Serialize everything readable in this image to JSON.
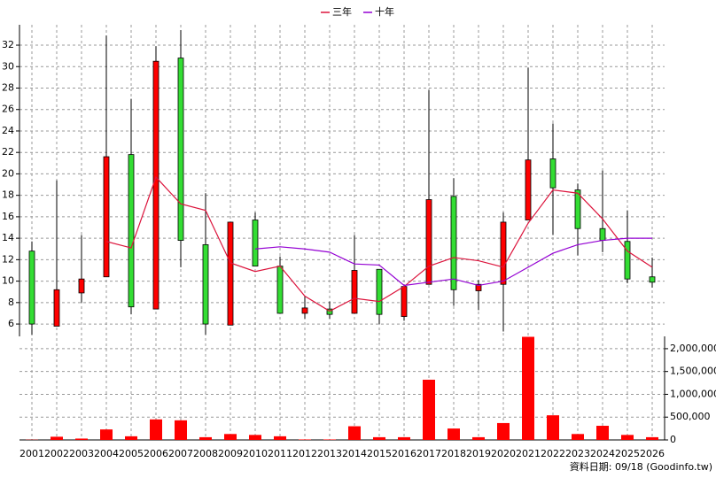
{
  "chart_data": {
    "type": "candlestick",
    "categories": [
      "2001",
      "2002",
      "2003",
      "2004",
      "2005",
      "2006",
      "2007",
      "2008",
      "2009",
      "2010",
      "2011",
      "2012",
      "2013",
      "2014",
      "2015",
      "2016",
      "2017",
      "2018",
      "2019",
      "2020",
      "2021",
      "2022",
      "2023",
      "2024",
      "2025",
      "2026"
    ],
    "open": [
      12.8,
      5.8,
      8.9,
      10.4,
      21.8,
      7.4,
      30.8,
      13.4,
      5.9,
      15.7,
      11.4,
      7.0,
      7.4,
      7.0,
      11.1,
      6.7,
      9.7,
      17.9,
      9.1,
      9.7,
      15.7,
      21.4,
      18.5,
      14.9,
      13.7,
      10.4
    ],
    "high": [
      13.7,
      19.4,
      14.3,
      32.9,
      27.0,
      31.9,
      33.4,
      18.2,
      15.5,
      16.4,
      12.3,
      8.6,
      8.1,
      14.3,
      11.1,
      9.7,
      27.8,
      19.6,
      10.1,
      16.4,
      29.9,
      24.7,
      19.1,
      20.3,
      16.6,
      12.2
    ],
    "low": [
      5.0,
      5.8,
      8.0,
      10.4,
      6.9,
      7.4,
      11.3,
      5.0,
      5.9,
      11.4,
      7.0,
      6.5,
      6.5,
      7.0,
      6.0,
      6.3,
      9.7,
      7.7,
      7.3,
      5.3,
      15.7,
      14.3,
      12.4,
      12.7,
      9.8,
      9.4
    ],
    "close": [
      6.0,
      9.2,
      10.2,
      21.6,
      7.6,
      30.5,
      13.8,
      6.0,
      15.5,
      11.4,
      7.0,
      7.5,
      6.9,
      11.0,
      6.9,
      9.5,
      17.6,
      9.2,
      9.7,
      15.5,
      21.3,
      18.7,
      14.9,
      13.8,
      10.2,
      9.9
    ],
    "up_color": "#ff0000",
    "down_color": "#33dd33",
    "series": [
      {
        "name": "三年",
        "color": "#dc143c",
        "values": [
          null,
          null,
          null,
          13.7,
          13.1,
          19.7,
          17.2,
          16.6,
          11.7,
          10.9,
          11.4,
          8.6,
          7.2,
          8.4,
          8.1,
          9.5,
          11.4,
          12.2,
          11.9,
          11.3,
          15.4,
          18.5,
          18.2,
          15.8,
          12.8,
          11.3
        ]
      },
      {
        "name": "十年",
        "color": "#9400d3",
        "values": [
          null,
          null,
          null,
          null,
          null,
          null,
          null,
          null,
          null,
          13.0,
          13.2,
          13.0,
          12.7,
          11.6,
          11.5,
          9.6,
          9.9,
          10.2,
          9.6,
          10.0,
          11.3,
          12.6,
          13.4,
          13.8,
          14.0,
          14.0
        ]
      }
    ],
    "ylim": [
      4.85,
      33.9
    ],
    "yticks": [
      6,
      8,
      10,
      12,
      14,
      16,
      18,
      20,
      22,
      24,
      26,
      28,
      30,
      32
    ],
    "volume": {
      "color": "#ff0000",
      "values": [
        5000,
        70000,
        30000,
        230000,
        80000,
        450000,
        430000,
        60000,
        130000,
        110000,
        80000,
        10000,
        10000,
        300000,
        60000,
        60000,
        1320000,
        250000,
        60000,
        370000,
        2260000,
        540000,
        130000,
        310000,
        110000,
        60000
      ],
      "ylim": [
        0,
        2270000
      ],
      "yticks": [
        {
          "value": 0,
          "label": "0"
        },
        {
          "value": 500000,
          "label": "500,000"
        },
        {
          "value": 1000000,
          "label": "1,000,000"
        },
        {
          "value": 1500000,
          "label": "1,500,000"
        },
        {
          "value": 2000000,
          "label": "2,000,000"
        }
      ]
    },
    "grid": true,
    "source": "資料日期: 09/18  (Goodinfo.tw)"
  }
}
